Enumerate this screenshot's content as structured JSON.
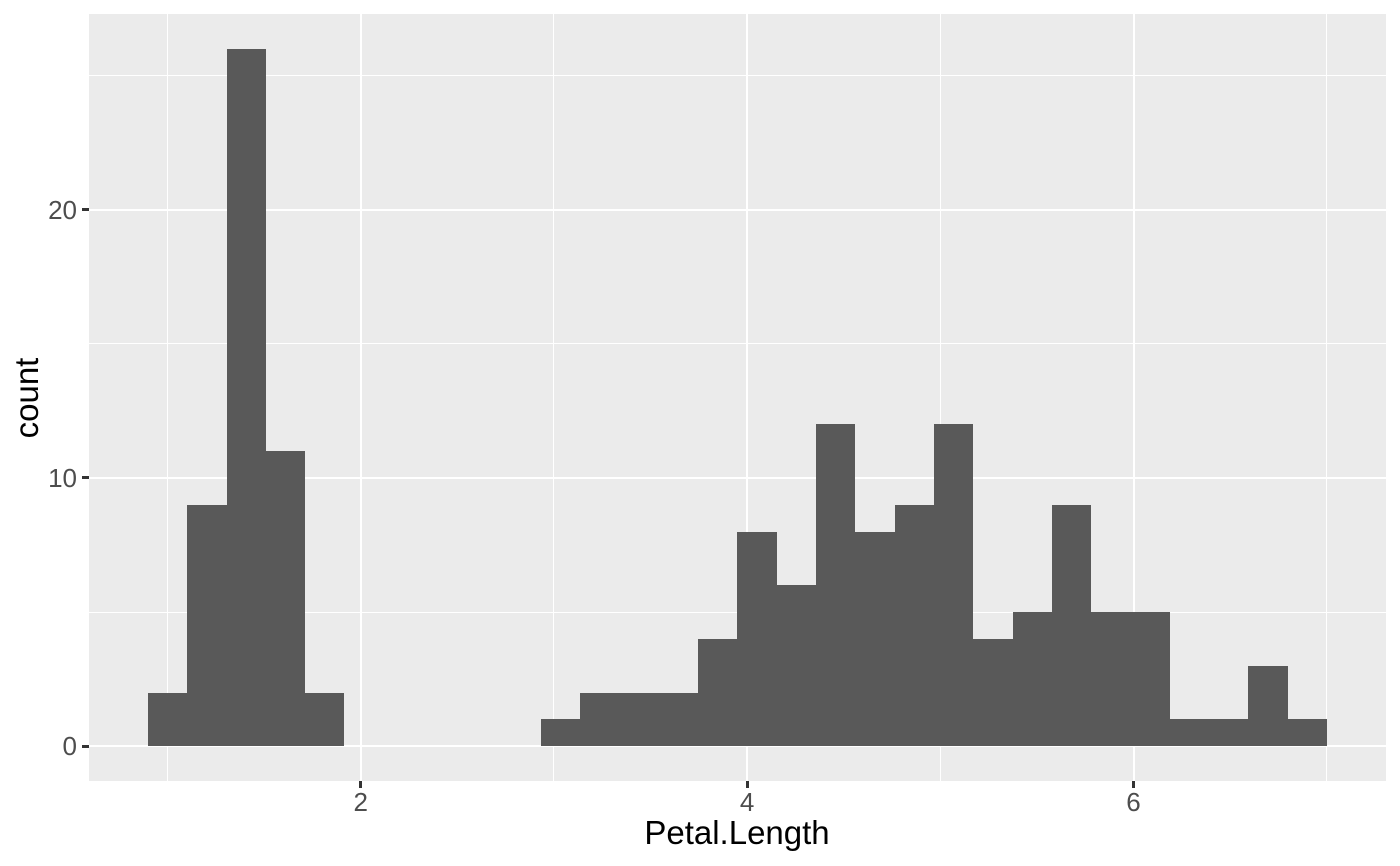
{
  "chart_data": {
    "type": "bar",
    "subtype": "histogram",
    "title": "",
    "xlabel": "Petal.Length",
    "ylabel": "count",
    "bin_width": 0.2034483,
    "bin_centers": [
      1.0,
      1.2034,
      1.4069,
      1.6103,
      1.8138,
      2.0172,
      2.2207,
      2.4241,
      2.6276,
      2.831,
      3.0345,
      3.2379,
      3.4414,
      3.6448,
      3.8483,
      4.0517,
      4.2552,
      4.4586,
      4.6621,
      4.8655,
      5.069,
      5.2724,
      5.4759,
      5.6793,
      5.8828,
      6.0862,
      6.2897,
      6.4931,
      6.6966,
      6.9
    ],
    "counts": [
      2,
      9,
      26,
      11,
      2,
      0,
      0,
      0,
      0,
      0,
      1,
      2,
      2,
      2,
      4,
      8,
      6,
      12,
      8,
      9,
      12,
      4,
      5,
      9,
      5,
      5,
      1,
      1,
      3,
      1
    ],
    "x_major_ticks": [
      2,
      4,
      6
    ],
    "x_tick_labels": [
      "2",
      "4",
      "6"
    ],
    "y_major_ticks": [
      0,
      10,
      20
    ],
    "y_tick_labels": [
      "0",
      "10",
      "20"
    ],
    "x_minor_ticks": [
      1,
      3,
      5,
      7
    ],
    "y_minor_ticks": [
      5,
      15,
      25
    ],
    "xlim": [
      0.593103,
      7.306897
    ],
    "ylim": [
      -1.3,
      27.3
    ],
    "grid": true,
    "legend_position": "none",
    "colors": {
      "bar_fill": "#595959",
      "panel_background": "#EBEBEB",
      "gridline": "#FFFFFF",
      "tick_mark": "#333333",
      "tick_label": "#4D4D4D",
      "axis_title": "#000000",
      "figure_background": "#FFFFFF"
    }
  }
}
